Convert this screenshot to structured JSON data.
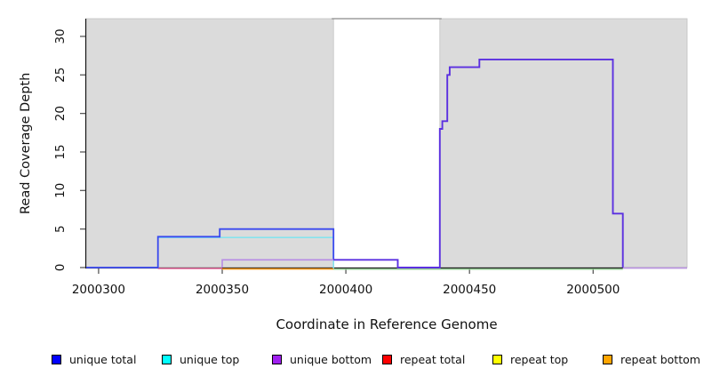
{
  "chart_data": {
    "type": "line",
    "step": true,
    "title": "",
    "xlabel": "Coordinate in Reference Genome",
    "ylabel": "Read Coverage Depth",
    "xlim": [
      2000295,
      2000538
    ],
    "ylim": [
      0,
      32.3
    ],
    "xticks": [
      2000300,
      2000350,
      2000400,
      2000450,
      2000500
    ],
    "yticks": [
      0,
      5,
      10,
      15,
      20,
      25,
      30
    ],
    "grid": false,
    "background_color": "#ffffff",
    "shaded_regions": [
      {
        "x0": 2000295,
        "x1": 2000395,
        "fill": "#DBDBDB",
        "edge": "#C2C2C2"
      },
      {
        "x0": 2000438,
        "x1": 2000538,
        "fill": "#DBDBDB",
        "edge": "#C2C2C2"
      }
    ],
    "unshaded_gap": {
      "x0": 2000395,
      "x1": 2000438,
      "top_border_color": "#8A8A8A"
    },
    "legend": {
      "position": "bottom",
      "entries": [
        {
          "label": "unique total",
          "color": "#0000FF"
        },
        {
          "label": "unique top",
          "color": "#00FFFF"
        },
        {
          "label": "unique bottom",
          "color": "#A020F0"
        },
        {
          "label": "repeat total",
          "color": "#FF0000"
        },
        {
          "label": "repeat top",
          "color": "#FFFF00"
        },
        {
          "label": "repeat bottom",
          "color": "#FFA500"
        }
      ]
    },
    "series": [
      {
        "name": "repeat top",
        "color": "#FFFF00",
        "layers": [
          {
            "stroke": "#8CCB8C",
            "width": 1.4,
            "dy": 1.8,
            "points": [
              [
                2000395,
                0
              ],
              [
                2000512,
                0
              ]
            ]
          }
        ]
      },
      {
        "name": "repeat bottom",
        "color": "#FFA500",
        "layers": [
          {
            "stroke": "#FF9C1E",
            "width": 1.6,
            "dy": 1.6,
            "points": [
              [
                2000350,
                0
              ],
              [
                2000395,
                0
              ]
            ]
          }
        ]
      },
      {
        "name": "repeat total",
        "color": "#FF0000",
        "layers": [
          {
            "stroke": "#E8679C",
            "width": 1.4,
            "dy": 1.0,
            "points": [
              [
                2000324,
                0
              ],
              [
                2000350,
                0
              ]
            ]
          }
        ]
      },
      {
        "name": "unique top",
        "color": "#00FFFF",
        "layers": [
          {
            "stroke": "#86E3EE",
            "width": 1.6,
            "dy": 0.9,
            "points": [
              [
                2000324,
                4
              ],
              [
                2000395,
                4
              ],
              [
                2000395,
                0
              ]
            ]
          }
        ]
      },
      {
        "name": "unique total",
        "color": "#0000FF",
        "layers": [
          {
            "stroke": "#3A49EE",
            "width": 1.8,
            "dy": 0,
            "points": [
              [
                2000295,
                0
              ],
              [
                2000324,
                0
              ],
              [
                2000324,
                4
              ],
              [
                2000349,
                4
              ],
              [
                2000349,
                5
              ],
              [
                2000395,
                5
              ],
              [
                2000395,
                1
              ]
            ]
          }
        ]
      },
      {
        "name": "unique bottom",
        "color": "#A020F0",
        "layers": [
          {
            "stroke": "#B78BE5",
            "width": 1.6,
            "dy": 0,
            "points": [
              [
                2000350,
                0
              ],
              [
                2000350,
                1
              ],
              [
                2000395,
                1
              ]
            ]
          },
          {
            "stroke": "#5B30E0",
            "width": 1.9,
            "dy": 0,
            "points": [
              [
                2000395,
                1
              ],
              [
                2000421,
                1
              ],
              [
                2000421,
                0
              ],
              [
                2000438,
                0
              ],
              [
                2000438,
                18
              ],
              [
                2000439,
                18
              ],
              [
                2000439,
                19
              ],
              [
                2000441,
                19
              ],
              [
                2000441,
                25
              ],
              [
                2000442,
                25
              ],
              [
                2000442,
                26
              ],
              [
                2000454,
                26
              ],
              [
                2000454,
                27
              ],
              [
                2000508,
                27
              ],
              [
                2000508,
                7
              ],
              [
                2000512,
                7
              ],
              [
                2000512,
                0
              ]
            ]
          },
          {
            "stroke": "#BD93E8",
            "width": 1.6,
            "dy": 0.5,
            "points": [
              [
                2000512,
                0
              ],
              [
                2000538,
                0
              ]
            ]
          }
        ]
      }
    ],
    "axis": {
      "color": "#1A1A1A",
      "tick_color": "#595959",
      "tick_len": 6,
      "tick_font_px": 13.5
    }
  }
}
